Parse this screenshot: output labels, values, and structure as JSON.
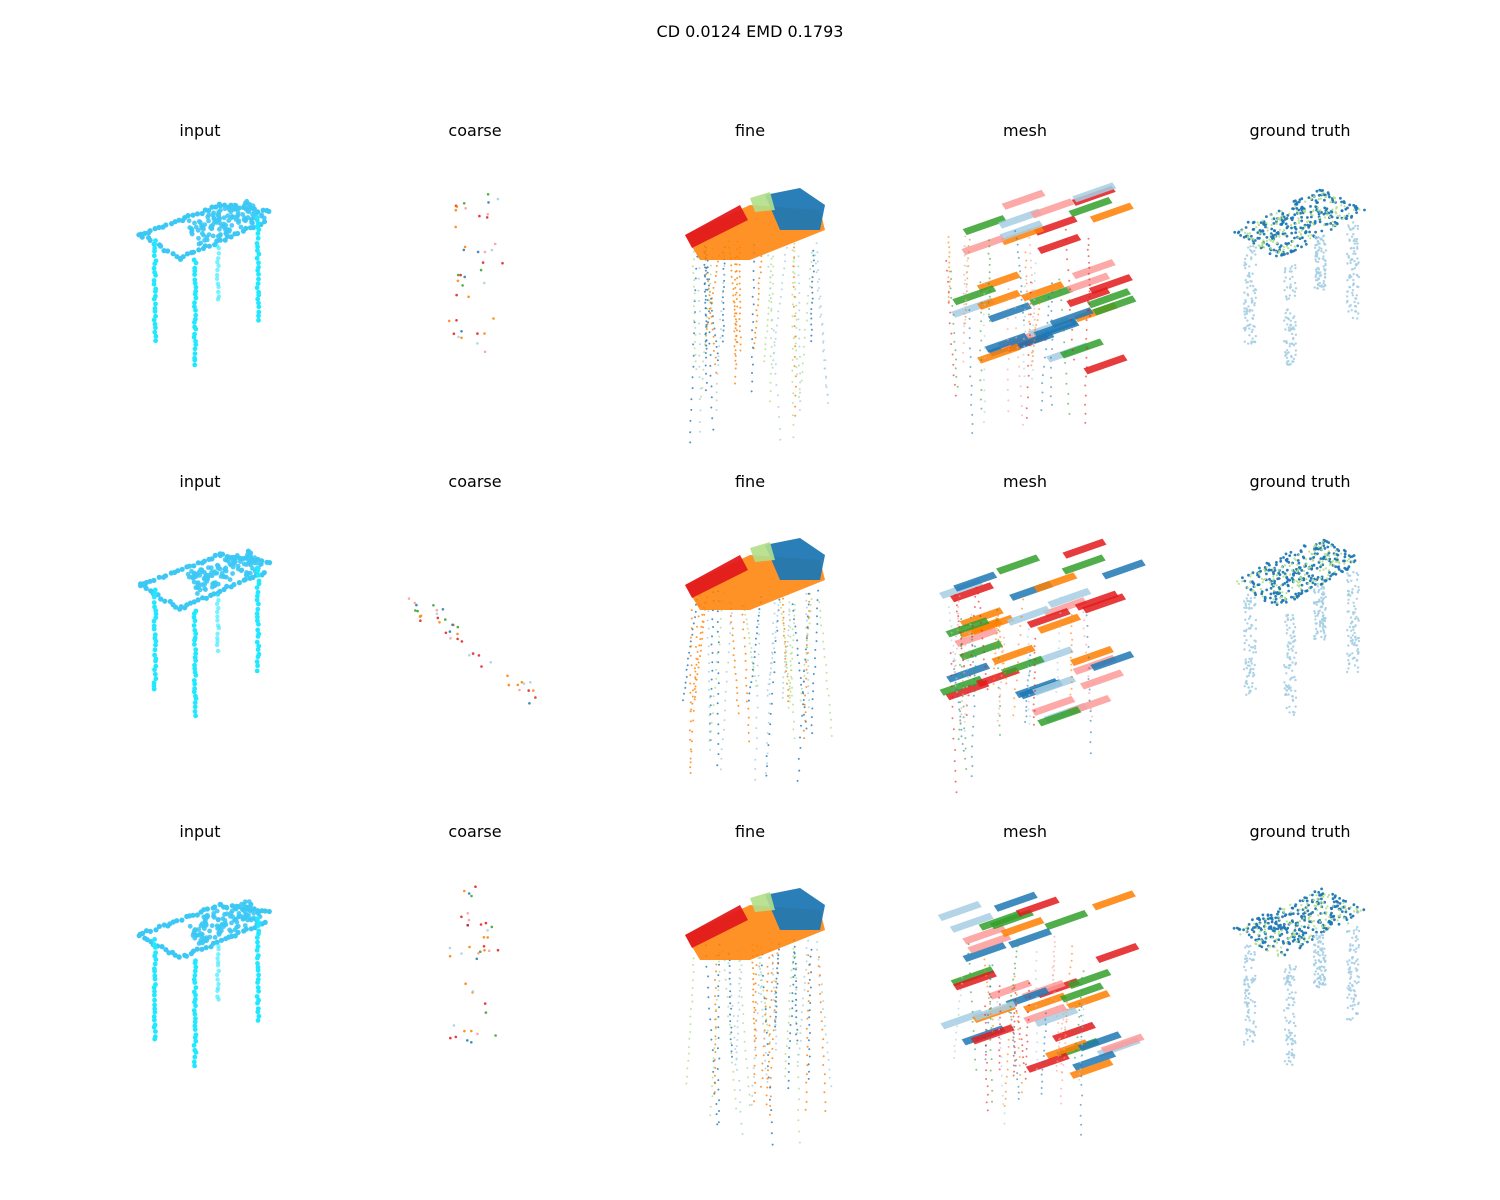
{
  "figure": {
    "title": "CD 0.0124  EMD 0.1793"
  },
  "rows": [
    {
      "panels": [
        {
          "title": "input",
          "kind": "input"
        },
        {
          "title": "coarse",
          "kind": "coarse"
        },
        {
          "title": "fine",
          "kind": "fine"
        },
        {
          "title": "mesh",
          "kind": "mesh"
        },
        {
          "title": "ground truth",
          "kind": "gt"
        }
      ]
    },
    {
      "panels": [
        {
          "title": "input",
          "kind": "input"
        },
        {
          "title": "coarse",
          "kind": "coarse"
        },
        {
          "title": "fine",
          "kind": "fine"
        },
        {
          "title": "mesh",
          "kind": "mesh"
        },
        {
          "title": "ground truth",
          "kind": "gt"
        }
      ]
    },
    {
      "panels": [
        {
          "title": "input",
          "kind": "input"
        },
        {
          "title": "coarse",
          "kind": "coarse"
        },
        {
          "title": "fine",
          "kind": "fine"
        },
        {
          "title": "mesh",
          "kind": "mesh"
        },
        {
          "title": "ground truth",
          "kind": "gt"
        }
      ]
    }
  ],
  "colors": {
    "input_top": "#3cc8f5",
    "input_legs": "#22e8ff",
    "blue_light": "#a6cee3",
    "blue": "#1f78b4",
    "green_light": "#b2df8a",
    "green": "#33a02c",
    "pink": "#fb9a99",
    "red": "#e31a1c",
    "orange": "#ff7f00"
  }
}
